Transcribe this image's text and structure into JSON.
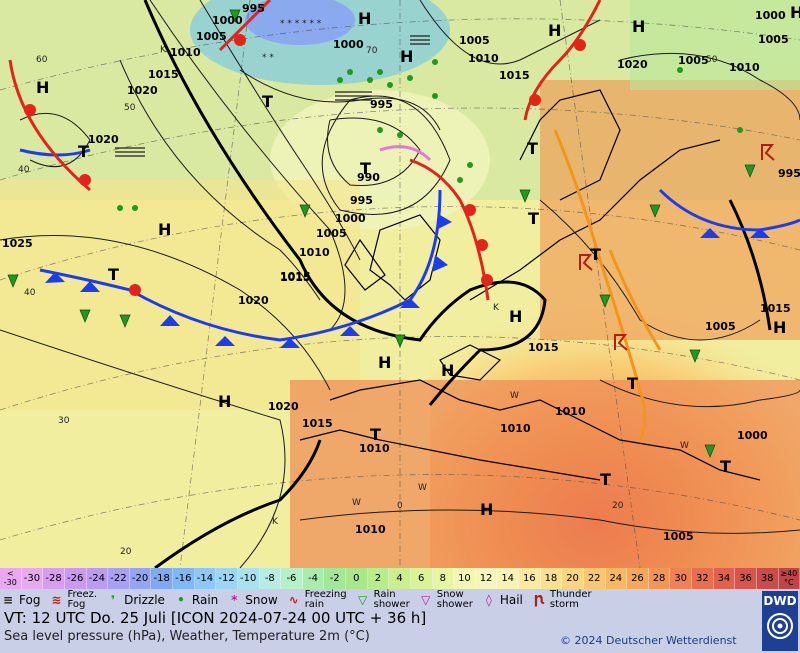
{
  "map": {
    "highs": [
      "H",
      "H",
      "H",
      "H",
      "H",
      "H",
      "H",
      "H",
      "H",
      "H",
      "H",
      "H",
      "H"
    ],
    "lows": [
      "T",
      "T",
      "T",
      "T",
      "T",
      "T",
      "T",
      "T",
      "T",
      "T",
      "T"
    ],
    "pressure_labels": [
      "1000",
      "995",
      "1005",
      "1010",
      "1015",
      "1020",
      "1000",
      "1005",
      "1010",
      "1015",
      "1020",
      "1020",
      "1015",
      "995",
      "990",
      "995",
      "1000",
      "1005",
      "1010",
      "1015",
      "1025",
      "1020",
      "1020",
      "1015",
      "1015",
      "1010",
      "1010",
      "1010",
      "1010",
      "1005",
      "1005",
      "1015",
      "1005",
      "1000",
      "1005",
      "995",
      "1010",
      "1000"
    ],
    "temp_labels": [
      "60",
      "50",
      "40",
      "40",
      "30",
      "20",
      "0",
      "70",
      "50",
      "20"
    ],
    "region_letters": [
      "K",
      "K",
      "K",
      "W",
      "W",
      "W",
      "W"
    ]
  },
  "scale": {
    "first": "<\n-30",
    "values": [
      "-30",
      "-28",
      "-26",
      "-24",
      "-22",
      "-20",
      "-18",
      "-16",
      "-14",
      "-12",
      "-10",
      "-8",
      "-6",
      "-4",
      "-2",
      "0",
      "2",
      "4",
      "6",
      "8",
      "10",
      "12",
      "14",
      "16",
      "18",
      "20",
      "22",
      "24",
      "26",
      "28",
      "30",
      "32",
      "34",
      "36",
      "38"
    ],
    "unit": "≥40\n°C",
    "colors": [
      "#e9a9f0",
      "#d89df0",
      "#c99af0",
      "#b99cf0",
      "#a8a0f2",
      "#95a4f4",
      "#7fa8f5",
      "#7eb8f6",
      "#8ec8f6",
      "#9dd6f4",
      "#a9e2ef",
      "#b6ece1",
      "#b6f0c8",
      "#a9edae",
      "#a0e895",
      "#a9e88a",
      "#b9ec8a",
      "#c9f08f",
      "#daf397",
      "#e7f6a4",
      "#f2f8b2",
      "#f7f6ba",
      "#faf2b0",
      "#fbeaa0",
      "#fbe090",
      "#fbd580",
      "#f9c770",
      "#f8b863",
      "#f6a75a",
      "#f39555",
      "#ef8152",
      "#e96e4f",
      "#e2604e",
      "#d8554c",
      "#c94b4a",
      "#bd4448"
    ]
  },
  "legend": {
    "items": [
      {
        "icon": "fog-icon",
        "label": "Fog"
      },
      {
        "icon": "freezing-fog-icon",
        "label": "Freez.\nFog"
      },
      {
        "icon": "drizzle-icon",
        "label": "Drizzle"
      },
      {
        "icon": "rain-icon",
        "label": "Rain"
      },
      {
        "icon": "snow-icon",
        "label": "Snow"
      },
      {
        "icon": "freezing-rain-icon",
        "label": "Freezing\nrain"
      },
      {
        "icon": "rain-shower-icon",
        "label": "Rain\nshower"
      },
      {
        "icon": "snow-shower-icon",
        "label": "Snow\nshower"
      },
      {
        "icon": "hail-icon",
        "label": "Hail"
      },
      {
        "icon": "thunderstorm-icon",
        "label": "Thunder\nstorm"
      }
    ],
    "vt": "VT: 12 UTC Do.  25 Juli [ICON 2024-07-24  00 UTC + 36 h]",
    "subtitle": "Sea level pressure (hPa), Weather, Temperature 2m (°C)",
    "copyright": "© 2024 Deutscher Wetterdienst",
    "logo": "DWD"
  }
}
